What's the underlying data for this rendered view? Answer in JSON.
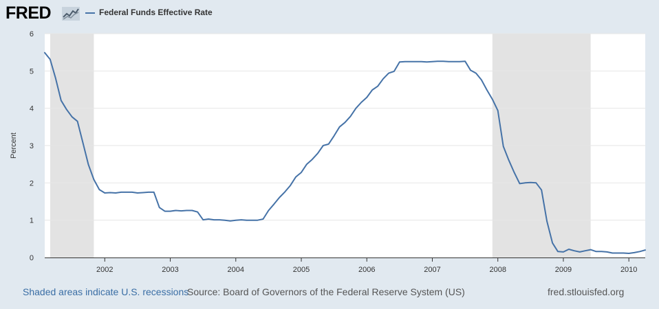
{
  "brand": {
    "logo_text": "FRED",
    "logo_icon": "chart-line-icon"
  },
  "legend": {
    "series_name": "Federal Funds Effective Rate",
    "color": "#4572a7"
  },
  "footer": {
    "recession_note": "Shaded areas indicate U.S. recessions",
    "source": "Source: Board of Governors of the Federal Reserve System (US)",
    "site": "fred.stlouisfed.org"
  },
  "chart_data": {
    "type": "line",
    "title": "",
    "xlabel": "",
    "ylabel": "Percent",
    "ylim": [
      0,
      6
    ],
    "yticks": [
      0,
      1,
      2,
      3,
      4,
      5,
      6
    ],
    "xlim": [
      "2001-02",
      "2010-04"
    ],
    "xticks": [
      "2002",
      "2003",
      "2004",
      "2005",
      "2006",
      "2007",
      "2008",
      "2009",
      "2010"
    ],
    "grid": true,
    "recessions": [
      {
        "start": "2001-03",
        "end": "2001-11"
      },
      {
        "start": "2007-12",
        "end": "2009-06"
      }
    ],
    "series": [
      {
        "name": "Federal Funds Effective Rate",
        "color": "#4572a7",
        "x": [
          "2001-02",
          "2001-03",
          "2001-04",
          "2001-05",
          "2001-06",
          "2001-07",
          "2001-08",
          "2001-09",
          "2001-10",
          "2001-11",
          "2001-12",
          "2002-01",
          "2002-02",
          "2002-03",
          "2002-04",
          "2002-05",
          "2002-06",
          "2002-07",
          "2002-08",
          "2002-09",
          "2002-10",
          "2002-11",
          "2002-12",
          "2003-01",
          "2003-02",
          "2003-03",
          "2003-04",
          "2003-05",
          "2003-06",
          "2003-07",
          "2003-08",
          "2003-09",
          "2003-10",
          "2003-11",
          "2003-12",
          "2004-01",
          "2004-02",
          "2004-03",
          "2004-04",
          "2004-05",
          "2004-06",
          "2004-07",
          "2004-08",
          "2004-09",
          "2004-10",
          "2004-11",
          "2004-12",
          "2005-01",
          "2005-02",
          "2005-03",
          "2005-04",
          "2005-05",
          "2005-06",
          "2005-07",
          "2005-08",
          "2005-09",
          "2005-10",
          "2005-11",
          "2005-12",
          "2006-01",
          "2006-02",
          "2006-03",
          "2006-04",
          "2006-05",
          "2006-06",
          "2006-07",
          "2006-08",
          "2006-09",
          "2006-10",
          "2006-11",
          "2006-12",
          "2007-01",
          "2007-02",
          "2007-03",
          "2007-04",
          "2007-05",
          "2007-06",
          "2007-07",
          "2007-08",
          "2007-09",
          "2007-10",
          "2007-11",
          "2007-12",
          "2008-01",
          "2008-02",
          "2008-03",
          "2008-04",
          "2008-05",
          "2008-06",
          "2008-07",
          "2008-08",
          "2008-09",
          "2008-10",
          "2008-11",
          "2008-12",
          "2009-01",
          "2009-02",
          "2009-03",
          "2009-04",
          "2009-05",
          "2009-06",
          "2009-07",
          "2009-08",
          "2009-09",
          "2009-10",
          "2009-11",
          "2009-12",
          "2010-01",
          "2010-02",
          "2010-03",
          "2010-04"
        ],
        "values": [
          5.49,
          5.31,
          4.8,
          4.21,
          3.97,
          3.77,
          3.65,
          3.07,
          2.49,
          2.09,
          1.82,
          1.73,
          1.74,
          1.73,
          1.75,
          1.75,
          1.75,
          1.73,
          1.74,
          1.75,
          1.75,
          1.34,
          1.24,
          1.24,
          1.26,
          1.25,
          1.26,
          1.26,
          1.22,
          1.01,
          1.03,
          1.01,
          1.01,
          1.0,
          0.98,
          1.0,
          1.01,
          1.0,
          1.0,
          1.0,
          1.03,
          1.26,
          1.43,
          1.61,
          1.76,
          1.93,
          2.16,
          2.28,
          2.5,
          2.63,
          2.79,
          3.0,
          3.04,
          3.26,
          3.5,
          3.62,
          3.78,
          4.0,
          4.16,
          4.29,
          4.49,
          4.59,
          4.79,
          4.94,
          4.99,
          5.24,
          5.25,
          5.25,
          5.25,
          5.25,
          5.24,
          5.25,
          5.26,
          5.26,
          5.25,
          5.25,
          5.25,
          5.26,
          5.02,
          4.94,
          4.76,
          4.49,
          4.24,
          3.94,
          2.98,
          2.61,
          2.28,
          1.98,
          2.0,
          2.01,
          2.0,
          1.81,
          0.97,
          0.39,
          0.16,
          0.15,
          0.22,
          0.18,
          0.15,
          0.18,
          0.21,
          0.16,
          0.16,
          0.15,
          0.12,
          0.12,
          0.12,
          0.11,
          0.13,
          0.16,
          0.2
        ]
      }
    ]
  }
}
